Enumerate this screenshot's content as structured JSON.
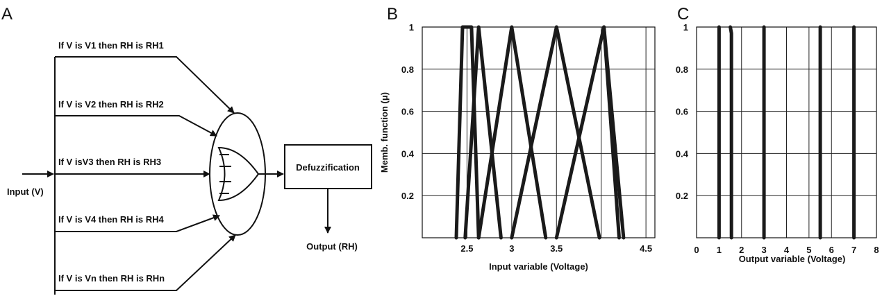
{
  "panel_a": {
    "letter": "A",
    "rules": [
      "If V is V1 then RH is RH1",
      "If V is V2 then RH is RH2",
      "If V isV3 then RH is RH3",
      "If V is V4 then RH is RH4",
      "If V is Vn then RH is RHn"
    ],
    "input_label": "Input (V)",
    "defuzz_label": "Defuzzification",
    "output_label": "Output (RH)"
  },
  "panel_b": {
    "letter": "B"
  },
  "panel_c": {
    "letter": "C"
  },
  "chart_data": [
    {
      "type": "line",
      "xlabel": "Input variable (Voltage)",
      "ylabel": "Memb. function (μ)",
      "xlim": [
        2.0,
        4.6
      ],
      "ylim": [
        0,
        1
      ],
      "x_ticks": [
        2.5,
        3,
        3.5,
        4.5
      ],
      "x_tick_labels": [
        "2.5",
        "3",
        "3.5",
        "4.5"
      ],
      "y_ticks": [
        0.2,
        0.4,
        0.6,
        0.8,
        1
      ],
      "y_tick_labels": [
        "0.2",
        "0.4",
        "0.6",
        "0.8",
        "1"
      ],
      "grid": true,
      "series": [
        {
          "x": [
            2.38,
            2.45,
            2.55,
            2.63
          ],
          "y": [
            0,
            1,
            1,
            0
          ]
        },
        {
          "x": [
            2.48,
            2.63,
            2.88
          ],
          "y": [
            0,
            1,
            0
          ]
        },
        {
          "x": [
            2.63,
            3.0,
            3.38
          ],
          "y": [
            0,
            1,
            0
          ]
        },
        {
          "x": [
            3.0,
            3.5,
            3.98
          ],
          "y": [
            0,
            1,
            0
          ]
        },
        {
          "x": [
            3.5,
            4.03,
            4.2
          ],
          "y": [
            0,
            1,
            0
          ]
        },
        {
          "x": [
            4.03,
            4.25
          ],
          "y": [
            1,
            0
          ]
        }
      ]
    },
    {
      "type": "line",
      "xlabel": "Output variable (Voltage)",
      "ylabel": "",
      "xlim": [
        0,
        8
      ],
      "ylim": [
        0,
        1
      ],
      "x_ticks": [
        0,
        1,
        2,
        3,
        4,
        5,
        6,
        7,
        8
      ],
      "x_tick_labels": [
        "0",
        "1",
        "2",
        "3",
        "4",
        "5",
        "6",
        "7",
        "8"
      ],
      "y_ticks": [
        0.2,
        0.4,
        0.6,
        0.8,
        1
      ],
      "y_tick_labels": [
        "0.2",
        "0.4",
        "0.6",
        "0.8",
        "1"
      ],
      "grid": true,
      "series": [
        {
          "x": [
            1,
            1
          ],
          "y": [
            0,
            1
          ]
        },
        {
          "x": [
            1.5,
            1.55,
            1.55
          ],
          "y": [
            1,
            0.97,
            0
          ]
        },
        {
          "x": [
            3,
            3
          ],
          "y": [
            0,
            1
          ]
        },
        {
          "x": [
            5.5,
            5.5
          ],
          "y": [
            0,
            1
          ]
        },
        {
          "x": [
            7,
            7
          ],
          "y": [
            0,
            1
          ]
        }
      ]
    }
  ]
}
